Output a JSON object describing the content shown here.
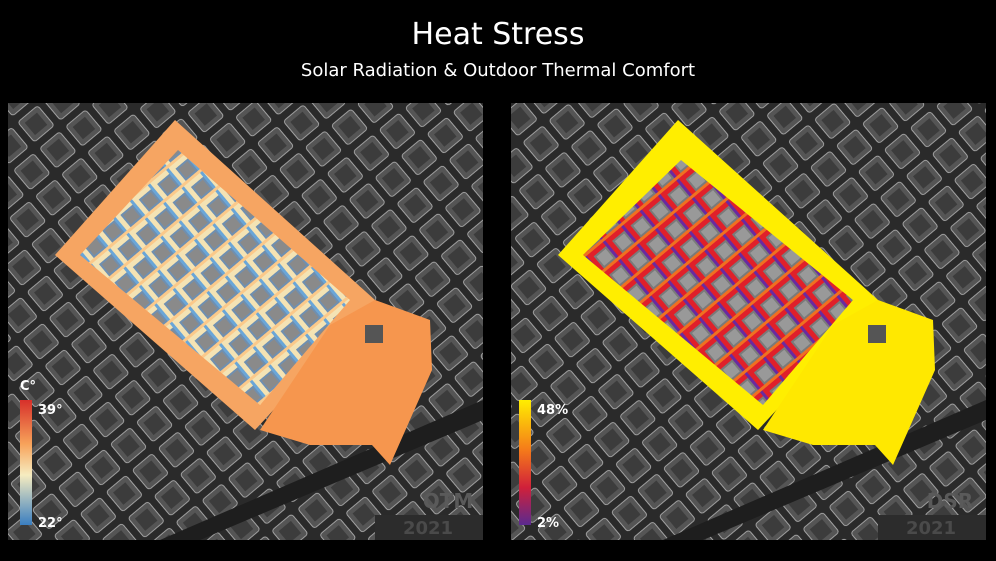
{
  "header": {
    "title": "Heat Stress",
    "subtitle": "Solar Radiation & Outdoor Thermal Comfort"
  },
  "panels": [
    {
      "name": "OTM",
      "year": "2021",
      "legend": {
        "unit": "C°",
        "max": "39°",
        "min": "22°"
      }
    },
    {
      "name": "DSR",
      "year": "2021",
      "legend": {
        "max": "48%",
        "min": "2%"
      }
    }
  ]
}
